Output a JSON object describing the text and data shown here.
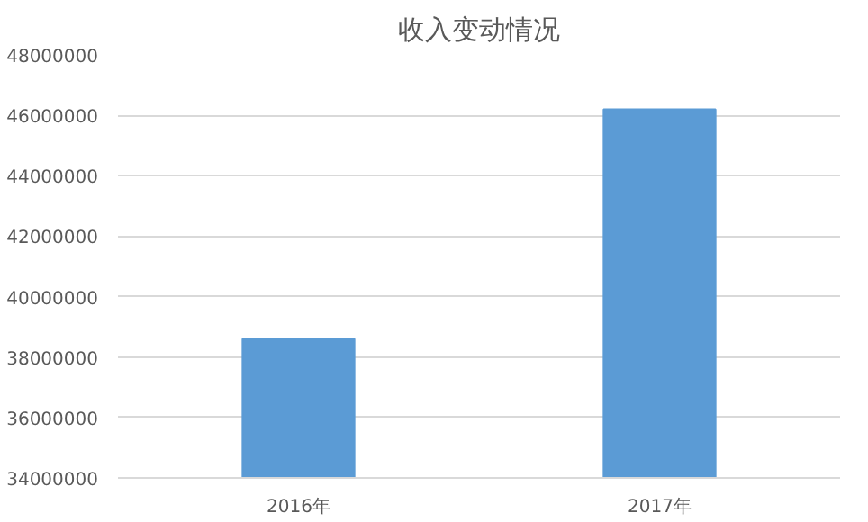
{
  "chart_data": {
    "type": "bar",
    "title": "收入变动情况",
    "categories": [
      "2016年",
      "2017年"
    ],
    "values": [
      38600000,
      46200000
    ],
    "color": "#5b9bd5",
    "ylim": [
      34000000,
      48000000
    ],
    "yticks": [
      34000000,
      36000000,
      38000000,
      40000000,
      42000000,
      44000000,
      46000000,
      48000000
    ],
    "grid": "y"
  }
}
